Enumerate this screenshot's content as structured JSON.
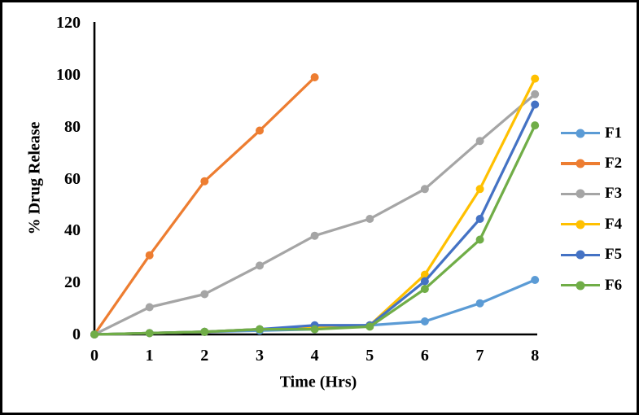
{
  "chart_data": {
    "type": "line",
    "title": "",
    "xlabel": "Time (Hrs)",
    "ylabel": "% Drug Release",
    "x": [
      0,
      1,
      2,
      3,
      4,
      5,
      6,
      7,
      8
    ],
    "x_ticks": [
      "0",
      "1",
      "2",
      "3",
      "4",
      "5",
      "6",
      "7",
      "8"
    ],
    "y_ticks": [
      "0",
      "20",
      "40",
      "60",
      "80",
      "100",
      "120"
    ],
    "xlim": [
      0,
      8
    ],
    "ylim": [
      0,
      120
    ],
    "grid": false,
    "legend_position": "right",
    "axis_color": "#000000",
    "series": [
      {
        "name": "F1",
        "color": "#5B9BD5",
        "values": [
          0,
          0.5,
          1,
          1.5,
          2,
          3.5,
          5,
          12,
          21
        ]
      },
      {
        "name": "F2",
        "color": "#ED7D31",
        "values": [
          0,
          30.5,
          59,
          78.5,
          99,
          null,
          null,
          null,
          null
        ]
      },
      {
        "name": "F3",
        "color": "#A5A5A5",
        "values": [
          0,
          10.5,
          15.5,
          26.5,
          38,
          44.5,
          56,
          74.5,
          92.5
        ]
      },
      {
        "name": "F4",
        "color": "#FFC000",
        "values": [
          0,
          0.5,
          1,
          2,
          2.5,
          3.5,
          23,
          56,
          98.5
        ]
      },
      {
        "name": "F5",
        "color": "#4472C4",
        "values": [
          0,
          0.5,
          1,
          2,
          3.5,
          3.5,
          20.5,
          44.5,
          88.5
        ]
      },
      {
        "name": "F6",
        "color": "#70AD47",
        "values": [
          0,
          0.5,
          1,
          2,
          2,
          3,
          17.5,
          36.5,
          80.5
        ]
      }
    ]
  }
}
